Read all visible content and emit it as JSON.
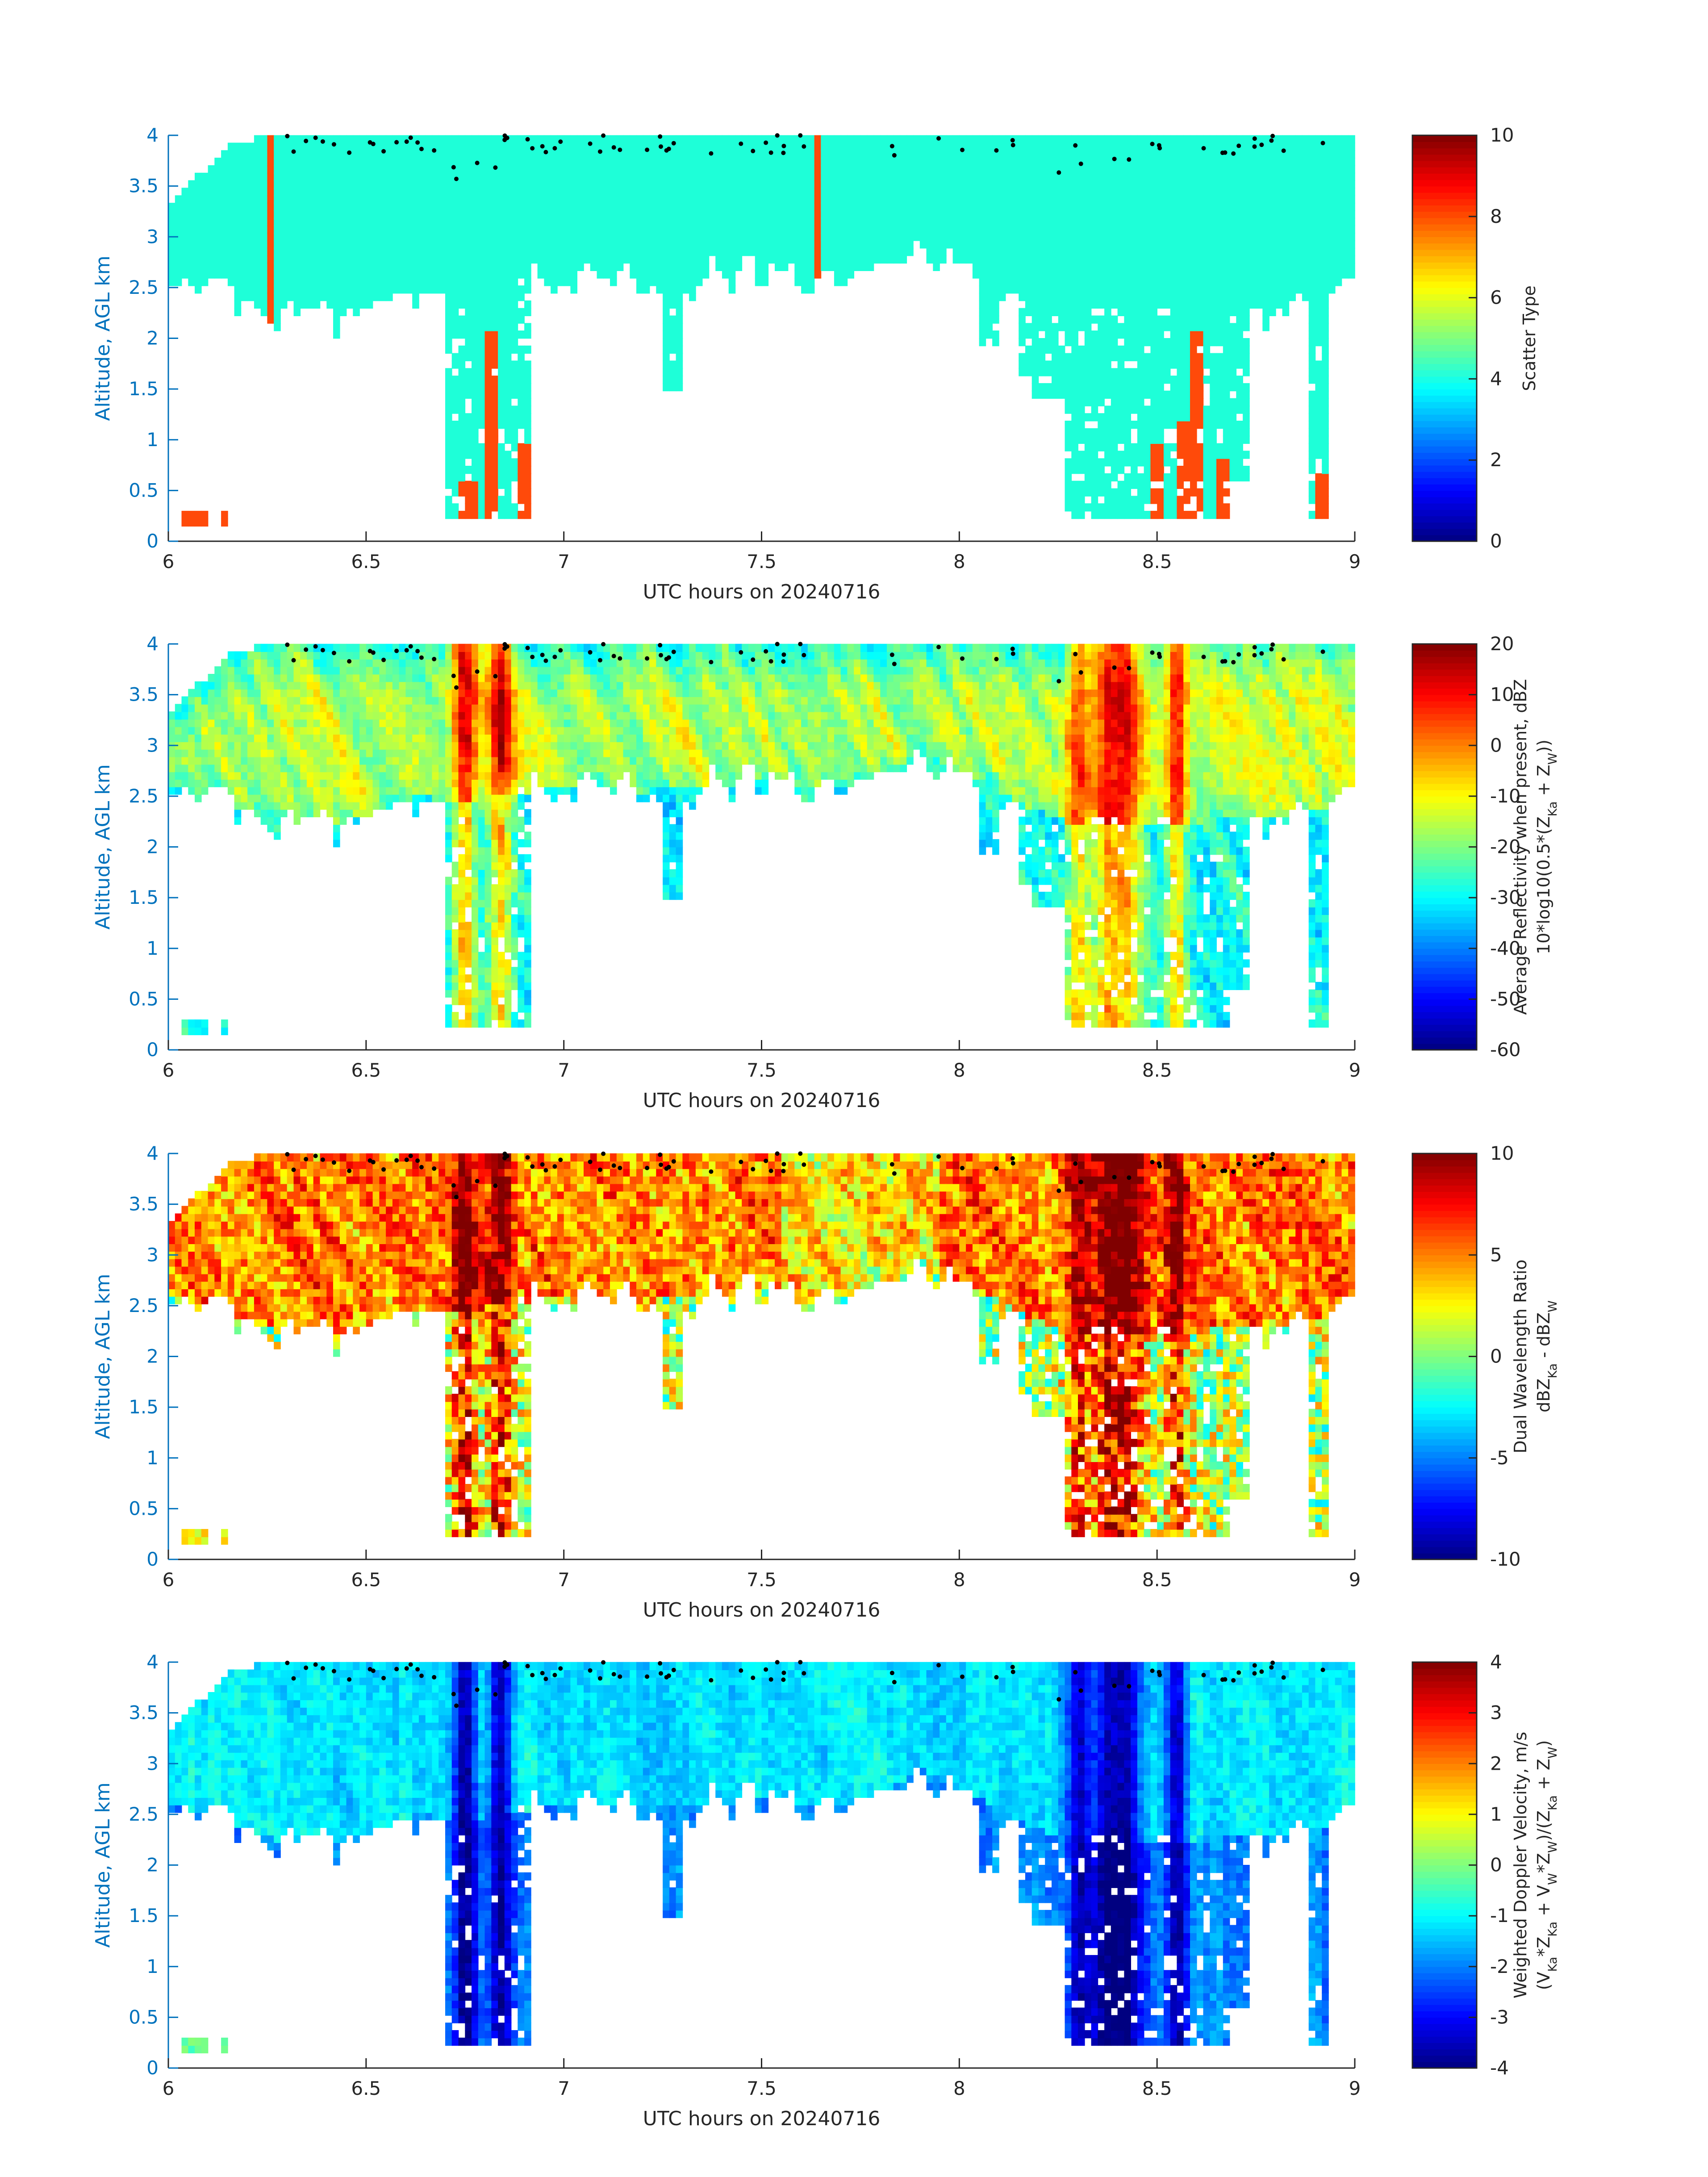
{
  "colors": {
    "axis": "#262626",
    "yaxis": "#0072bd",
    "scatter_cloud": "#1effd8",
    "scatter_precip": "#ff4a0a"
  },
  "shared": {
    "xlabel": "UTC hours on 20240716",
    "ylabel": "Altitude, AGL km",
    "xticks": [
      "6",
      "6.5",
      "7",
      "7.5",
      "8",
      "8.5",
      "9"
    ],
    "yticks": [
      "0",
      "0.5",
      "1",
      "1.5",
      "2",
      "2.5",
      "3",
      "3.5",
      "4"
    ]
  },
  "chart_data": [
    {
      "type": "heatmap",
      "name": "scatter-type",
      "xlabel": "UTC hours on 20240716",
      "ylabel": "Altitude, AGL km",
      "xlim": [
        6,
        9
      ],
      "ylim": [
        0,
        4
      ],
      "colorbar": {
        "label_lines": [
          "Scatter Type"
        ],
        "ticks": [
          "0",
          "2",
          "4",
          "6",
          "8",
          "10"
        ],
        "range": [
          0,
          10
        ],
        "colormap": "jet"
      },
      "dominant_values": {
        "cloud": 4,
        "precipitation": 8.5
      }
    },
    {
      "type": "heatmap",
      "name": "average-reflectivity",
      "xlabel": "UTC hours on 20240716",
      "ylabel": "Altitude, AGL km",
      "xlim": [
        6,
        9
      ],
      "ylim": [
        0,
        4
      ],
      "colorbar": {
        "label_lines": [
          "Average Reflectivity when present, dBZ",
          "10*log10(0.5*(Z_Ka + Z_W))"
        ],
        "ticks": [
          "-60",
          "-50",
          "-40",
          "-30",
          "-20",
          "-10",
          "0",
          "10",
          "20"
        ],
        "range": [
          -60,
          20
        ],
        "colormap": "jet"
      }
    },
    {
      "type": "heatmap",
      "name": "dual-wavelength-ratio",
      "xlabel": "UTC hours on 20240716",
      "ylabel": "Altitude, AGL km",
      "xlim": [
        6,
        9
      ],
      "ylim": [
        0,
        4
      ],
      "colorbar": {
        "label_lines": [
          "Dual Wavelength Ratio",
          "dBZ_Ka - dBZ_W"
        ],
        "ticks": [
          "-10",
          "-5",
          "0",
          "5",
          "10"
        ],
        "range": [
          -10,
          10
        ],
        "colormap": "jet"
      }
    },
    {
      "type": "heatmap",
      "name": "weighted-doppler-velocity",
      "xlabel": "UTC hours on 20240716",
      "ylabel": "Altitude, AGL km",
      "xlim": [
        6,
        9
      ],
      "ylim": [
        0,
        4
      ],
      "colorbar": {
        "label_lines": [
          "Weighted Doppler Velocity, m/s",
          "(V_Ka*Z_Ka + V_W*Z_W)/(Z_Ka + Z_W)"
        ],
        "ticks": [
          "-4",
          "-3",
          "-2",
          "-1",
          "0",
          "1",
          "2",
          "3",
          "4"
        ],
        "range": [
          -4,
          4
        ],
        "colormap": "jet"
      }
    }
  ]
}
